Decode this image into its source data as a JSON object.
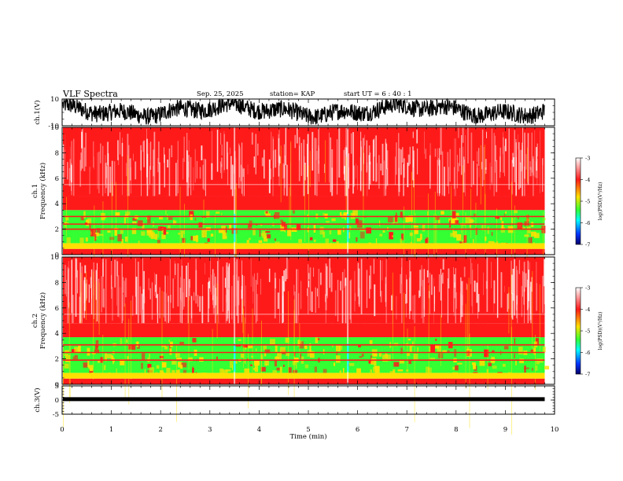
{
  "header": {
    "title": "VLF Spectra",
    "date": "Sep. 25, 2025",
    "station": "station= KAP",
    "start": "start  UT =   6 : 40 : 1"
  },
  "chart_data": [
    {
      "type": "line",
      "name": "ch1-waveform",
      "ylabel": "ch.1(V)",
      "ylim": [
        -10,
        10
      ],
      "ytick_labels": [
        "10",
        "-10"
      ],
      "xlim": [
        0,
        10
      ],
      "data_end_min": 9.8,
      "signal": "noisy broadband waveform, mostly between -6 and 9 V"
    },
    {
      "type": "heatmap",
      "name": "ch1-spectrogram",
      "ylabel_1": "ch.1",
      "ylabel_2": "Frequency (kHz)",
      "ylim": [
        0,
        10
      ],
      "ytick_labels": [
        "0",
        "2",
        "4",
        "6",
        "8",
        "10"
      ],
      "xlim": [
        0,
        10
      ],
      "data_end_min": 9.8,
      "bands": [
        {
          "from_khz": 0.0,
          "to_khz": 0.45,
          "level": "red"
        },
        {
          "from_khz": 0.45,
          "to_khz": 0.9,
          "level": "yellow"
        },
        {
          "from_khz": 0.9,
          "to_khz": 3.5,
          "level": "green-yellow"
        },
        {
          "from_khz": 3.5,
          "to_khz": 4.6,
          "level": "red"
        },
        {
          "from_khz": 4.6,
          "to_khz": 10.0,
          "level": "red-white"
        }
      ],
      "lines_khz": [
        2.0,
        2.4,
        3.0
      ]
    },
    {
      "type": "heatmap",
      "name": "ch2-spectrogram",
      "ylabel_1": "ch.2",
      "ylabel_2": "Frequency (kHz)",
      "ylim": [
        0,
        10
      ],
      "ytick_labels": [
        "0",
        "2",
        "4",
        "6",
        "8",
        "10"
      ],
      "xlim": [
        0,
        10
      ],
      "data_end_min": 9.8,
      "bands": [
        {
          "from_khz": 0.0,
          "to_khz": 0.45,
          "level": "red"
        },
        {
          "from_khz": 0.45,
          "to_khz": 0.9,
          "level": "yellow"
        },
        {
          "from_khz": 0.9,
          "to_khz": 3.7,
          "level": "green-yellow"
        },
        {
          "from_khz": 3.7,
          "to_khz": 4.8,
          "level": "red"
        },
        {
          "from_khz": 4.8,
          "to_khz": 10.0,
          "level": "red-white"
        }
      ],
      "lines_khz": [
        1.9,
        2.5,
        3.1
      ]
    },
    {
      "type": "line",
      "name": "ch3-signal",
      "ylabel": "ch.3(V)",
      "ylim": [
        -5,
        5
      ],
      "ytick_labels": [
        "5",
        "0",
        "-5"
      ],
      "xlim": [
        0,
        10
      ],
      "data_end_min": 9.8,
      "level_v": 0.3,
      "xlabel": "Time (min)",
      "xtick_labels": [
        "0",
        "1",
        "2",
        "3",
        "4",
        "5",
        "6",
        "7",
        "8",
        "9",
        "10"
      ]
    }
  ],
  "colorbars": [
    {
      "ticks": [
        "-3",
        "-4",
        "-5",
        "-6",
        "-7"
      ],
      "range": [
        -7,
        -3
      ],
      "label": "log(PSD)(V²/Hz)"
    },
    {
      "ticks": [
        "-3",
        "-4",
        "-5",
        "-6",
        "-7"
      ],
      "range": [
        -7,
        -3
      ],
      "label": "log(PSD)(V²/Hz)"
    }
  ],
  "colors": {
    "white": "#ffffff",
    "red": "#ff1a1a",
    "yellow": "#ffe000",
    "green": "#33ff33",
    "cyan": "#00ffff",
    "blue": "#0033ff",
    "navy": "#000066"
  }
}
